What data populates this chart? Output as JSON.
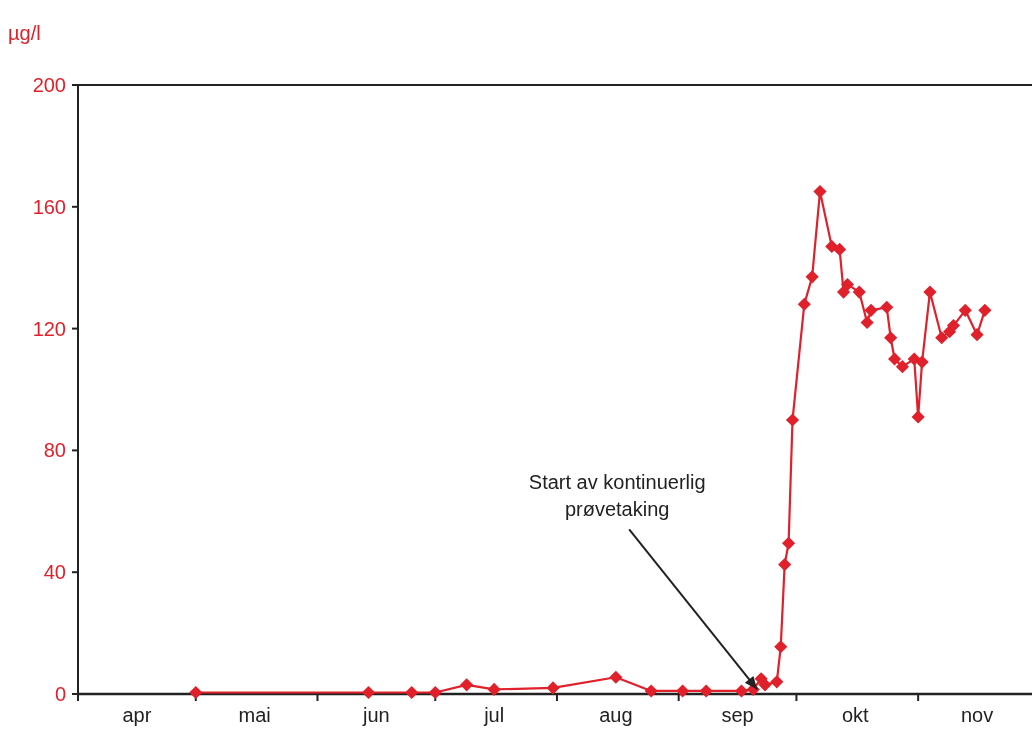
{
  "chart_data": {
    "type": "line",
    "ylabel": "µg/l",
    "marker": "diamond",
    "grid": false,
    "ylim": [
      0,
      200
    ],
    "yticks": [
      0,
      40,
      80,
      120,
      160,
      200
    ],
    "xlim": [
      "--04-01",
      "--11-30"
    ],
    "xticks": [
      {
        "value": "--04-01",
        "label": null
      },
      {
        "value": "--04-16",
        "label": "apr"
      },
      {
        "value": "--05-01",
        "label": null
      },
      {
        "value": "--05-16",
        "label": "mai"
      },
      {
        "value": "--06-01",
        "label": null
      },
      {
        "value": "--06-16",
        "label": "jun"
      },
      {
        "value": "--07-01",
        "label": null
      },
      {
        "value": "--07-16",
        "label": "jul"
      },
      {
        "value": "--08-01",
        "label": null
      },
      {
        "value": "--08-16",
        "label": "aug"
      },
      {
        "value": "--09-01",
        "label": null
      },
      {
        "value": "--09-16",
        "label": "sep"
      },
      {
        "value": "--10-01",
        "label": null
      },
      {
        "value": "--10-16",
        "label": "okt"
      },
      {
        "value": "--11-01",
        "label": null
      },
      {
        "value": "--11-16",
        "label": "nov"
      }
    ],
    "annotations": [
      {
        "text": "Start av kontinuerlig prøvetaking",
        "x": "--09-21",
        "y": 1.5
      }
    ],
    "series": [
      {
        "color": "#e0202a",
        "x": [
          "--05-01",
          "--06-14",
          "--06-25",
          "--07-01",
          "--07-09",
          "--07-16",
          "--07-31",
          "--08-16",
          "--08-25",
          "--09-02",
          "--09-08",
          "--09-17",
          "--09-20",
          "--09-22",
          "--09-23",
          "--09-26",
          "--09-27",
          "--09-28",
          "--09-29",
          "--09-30",
          "--10-03",
          "--10-05",
          "--10-07",
          "--10-10",
          "--10-12",
          "--10-13",
          "--10-14",
          "--10-17",
          "--10-19",
          "--10-20",
          "--10-24",
          "--10-25",
          "--10-26",
          "--10-28",
          "--10-31",
          "--11-01",
          "--11-02",
          "--11-04",
          "--11-07",
          "--11-09",
          "--11-10",
          "--11-13",
          "--11-16",
          "--11-18"
        ],
        "values": [
          0.5,
          0.5,
          0.5,
          0.5,
          3,
          1.5,
          2,
          5.5,
          1,
          1,
          1,
          1,
          1.5,
          5,
          3,
          4,
          15.5,
          42.5,
          49.5,
          90,
          128,
          137,
          165,
          147,
          146,
          132,
          134.5,
          132,
          122,
          126,
          127,
          117,
          110,
          107.5,
          110,
          91,
          109,
          132,
          117,
          119,
          121,
          126,
          118,
          126
        ]
      }
    ]
  }
}
